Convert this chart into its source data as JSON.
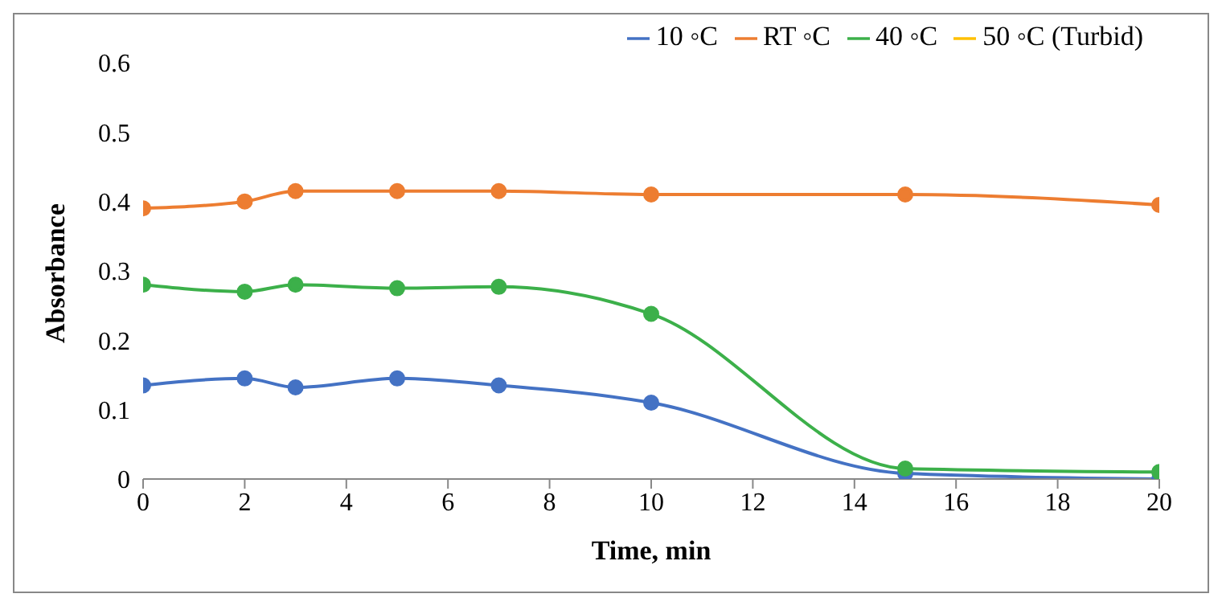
{
  "chart_data": {
    "type": "line",
    "xlabel": "Time, min",
    "ylabel": "Absorbance",
    "x": [
      0,
      2,
      3,
      5,
      7,
      10,
      15,
      20
    ],
    "series": [
      {
        "name": "10 ◦C",
        "color": "#4472c4",
        "values": [
          0.135,
          0.145,
          0.132,
          0.145,
          0.135,
          0.11,
          0.008,
          0
        ]
      },
      {
        "name": "RT ◦C",
        "color": "#ed7d31",
        "values": [
          0.39,
          0.4,
          0.415,
          0.415,
          0.415,
          0.41,
          0.41,
          0.395
        ]
      },
      {
        "name": "40 ◦C",
        "color": "#3cb04a",
        "values": [
          0.28,
          0.27,
          0.28,
          0.275,
          0.277,
          0.238,
          0.015,
          0.01
        ]
      },
      {
        "name": "50 ◦C (Turbid)",
        "color": "#ffc000",
        "values": [
          null,
          null,
          null,
          null,
          null,
          null,
          null,
          null
        ]
      }
    ],
    "xlim": [
      0,
      20
    ],
    "xticks": [
      0,
      2,
      4,
      6,
      8,
      10,
      12,
      14,
      16,
      18,
      20
    ],
    "ylim": [
      0,
      0.6
    ],
    "yticks": [
      0,
      0.1,
      0.2,
      0.3,
      0.4,
      0.5,
      0.6
    ],
    "grid": false,
    "legend": "top right",
    "marker": "circle",
    "line_style": "solid"
  }
}
